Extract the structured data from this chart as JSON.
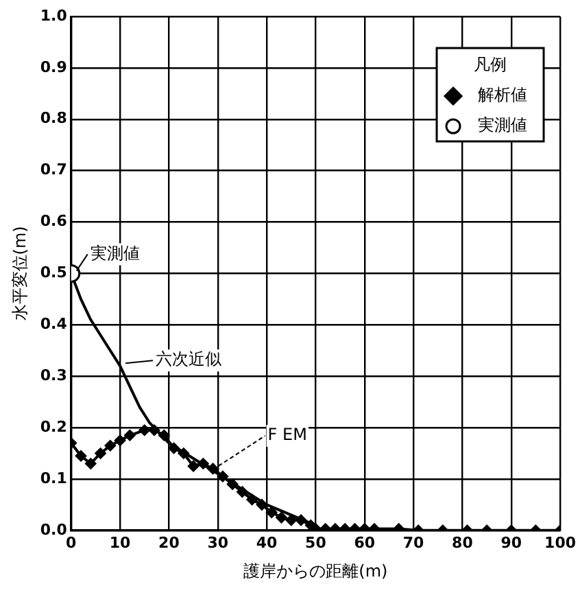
{
  "chart_data": {
    "type": "scatter",
    "xlabel": "護岸からの距離(m)",
    "ylabel": "水平変位(m)",
    "xlim": [
      0,
      100
    ],
    "xticks": [
      0,
      10,
      20,
      30,
      40,
      50,
      60,
      70,
      80,
      90,
      100
    ],
    "ylim": [
      0,
      1
    ],
    "yticks": [
      {
        "value": 0,
        "label": "0.0"
      },
      {
        "value": 0.1,
        "label": "0.1"
      },
      {
        "value": 0.2,
        "label": "0.2"
      },
      {
        "value": 0.3,
        "label": "0.3"
      },
      {
        "value": 0.4,
        "label": "0.4"
      },
      {
        "value": 0.5,
        "label": "0.5"
      },
      {
        "value": 0.6,
        "label": "0.6"
      },
      {
        "value": 0.7,
        "label": "0.7"
      },
      {
        "value": 0.8,
        "label": "0.8"
      },
      {
        "value": 0.9,
        "label": "0.9"
      },
      {
        "value": 1,
        "label": "1.0"
      }
    ],
    "grid": true,
    "legend": "top right",
    "legend_title": "凡例",
    "series": [
      {
        "name": "解析値",
        "type": "line",
        "marker": "diamond",
        "color": "#000000",
        "x": [
          0,
          2,
          4,
          6,
          8,
          10,
          12,
          15,
          17,
          19,
          21,
          23,
          25,
          27,
          29,
          31,
          33,
          35,
          37,
          39,
          41,
          43,
          45,
          47,
          49,
          50,
          52,
          54,
          56,
          58,
          60,
          62,
          67,
          71,
          76,
          81,
          85,
          90,
          95,
          100
        ],
        "values": [
          0.17,
          0.145,
          0.13,
          0.15,
          0.165,
          0.175,
          0.185,
          0.195,
          0.195,
          0.185,
          0.16,
          0.15,
          0.125,
          0.13,
          0.12,
          0.105,
          0.09,
          0.075,
          0.06,
          0.05,
          0.035,
          0.025,
          0.02,
          0.02,
          0.01,
          0.003,
          0.003,
          0.003,
          0.003,
          0.003,
          0.003,
          0.003,
          0.003,
          0,
          0,
          0,
          0,
          0,
          0,
          0
        ]
      },
      {
        "name": "実測値",
        "marker": "circle",
        "color": "#000000",
        "x": [
          0
        ],
        "values": [
          0.5
        ]
      },
      {
        "type": "line",
        "marker": "none",
        "color": "#000000",
        "x": [
          0,
          2,
          4,
          6,
          8,
          10,
          12,
          14,
          16,
          18,
          20,
          25,
          30,
          35,
          40,
          45,
          50
        ],
        "values": [
          0.5,
          0.45,
          0.41,
          0.38,
          0.35,
          0.32,
          0.28,
          0.24,
          0.21,
          0.19,
          0.17,
          0.14,
          0.11,
          0.08,
          0.05,
          0.03,
          0.01
        ]
      }
    ],
    "annotations": [
      {
        "text": "実測値",
        "x": 0,
        "y": 0.5
      },
      {
        "text": "六次近似",
        "x": 10,
        "y": 0.32
      },
      {
        "text": "F EM",
        "x": 29,
        "y": 0.12
      }
    ]
  }
}
